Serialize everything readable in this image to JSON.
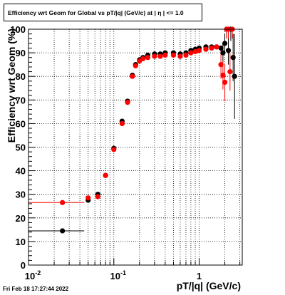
{
  "title": "Efficiency wrt Geom for Global vs pT/|q| (GeV/c) at |  η | <= 1.0",
  "timestamp": "Fri Feb 18 17:27:44 2022",
  "chart_data": {
    "type": "scatter",
    "title": "Efficiency wrt Geom for Global vs pT/|q| (GeV/c) at |  η | <= 1.0",
    "xlabel": "pT/|q| (GeV/c)",
    "ylabel": "Efficiency wrt Geom (%)",
    "xscale": "log",
    "xlim": [
      0.01,
      3.2
    ],
    "ylim": [
      0,
      100
    ],
    "grid": true,
    "x_tick_labels": [
      "10^-2",
      "10^-1",
      "1"
    ],
    "y_tick_labels": [
      "0",
      "10",
      "20",
      "30",
      "40",
      "50",
      "60",
      "70",
      "80",
      "90",
      "100"
    ],
    "series": [
      {
        "color": "#000000",
        "points": [
          {
            "x": 0.025,
            "y": 14.5,
            "xerr": [
              0.01,
              0.045
            ]
          },
          {
            "x": 0.05,
            "y": 27.5
          },
          {
            "x": 0.065,
            "y": 30.0
          },
          {
            "x": 0.08,
            "y": 38.0
          },
          {
            "x": 0.1,
            "y": 49.5
          },
          {
            "x": 0.125,
            "y": 61.0
          },
          {
            "x": 0.145,
            "y": 69.5
          },
          {
            "x": 0.165,
            "y": 80.5
          },
          {
            "x": 0.18,
            "y": 85.0
          },
          {
            "x": 0.2,
            "y": 87.0
          },
          {
            "x": 0.22,
            "y": 88.0
          },
          {
            "x": 0.25,
            "y": 89.0
          },
          {
            "x": 0.3,
            "y": 89.5
          },
          {
            "x": 0.35,
            "y": 89.5
          },
          {
            "x": 0.4,
            "y": 90.0
          },
          {
            "x": 0.5,
            "y": 90.0
          },
          {
            "x": 0.6,
            "y": 89.5
          },
          {
            "x": 0.7,
            "y": 90.0
          },
          {
            "x": 0.8,
            "y": 91.0
          },
          {
            "x": 0.9,
            "y": 91.5
          },
          {
            "x": 1.0,
            "y": 92.0
          },
          {
            "x": 1.2,
            "y": 92.5
          },
          {
            "x": 1.4,
            "y": 92.5
          },
          {
            "x": 1.6,
            "y": 92.5
          },
          {
            "x": 1.8,
            "y": 92.0
          },
          {
            "x": 1.9,
            "y": 90.0,
            "yerr": 4
          },
          {
            "x": 2.0,
            "y": 94.0,
            "yerr": 4
          },
          {
            "x": 2.1,
            "y": 100.0,
            "yerr": 4
          },
          {
            "x": 2.2,
            "y": 91.0,
            "yerr": 6
          },
          {
            "x": 2.35,
            "y": 100.0,
            "yerr": 5
          },
          {
            "x": 2.5,
            "y": 88.0,
            "yerr": 10
          },
          {
            "x": 2.6,
            "y": 80.0,
            "yerr": 18
          }
        ]
      },
      {
        "color": "#ff0000",
        "points": [
          {
            "x": 0.025,
            "y": 26.5,
            "xerr": [
              0.01,
              0.045
            ]
          },
          {
            "x": 0.05,
            "y": 28.5
          },
          {
            "x": 0.065,
            "y": 29.0
          },
          {
            "x": 0.08,
            "y": 38.0
          },
          {
            "x": 0.1,
            "y": 49.0
          },
          {
            "x": 0.125,
            "y": 60.0
          },
          {
            "x": 0.145,
            "y": 69.0
          },
          {
            "x": 0.165,
            "y": 80.0
          },
          {
            "x": 0.18,
            "y": 84.5
          },
          {
            "x": 0.2,
            "y": 86.5
          },
          {
            "x": 0.22,
            "y": 87.5
          },
          {
            "x": 0.25,
            "y": 88.0
          },
          {
            "x": 0.3,
            "y": 88.5
          },
          {
            "x": 0.35,
            "y": 88.5
          },
          {
            "x": 0.4,
            "y": 89.0
          },
          {
            "x": 0.5,
            "y": 89.0
          },
          {
            "x": 0.6,
            "y": 88.5
          },
          {
            "x": 0.7,
            "y": 89.0
          },
          {
            "x": 0.8,
            "y": 90.0
          },
          {
            "x": 0.9,
            "y": 90.5
          },
          {
            "x": 1.0,
            "y": 91.0
          },
          {
            "x": 1.2,
            "y": 91.5
          },
          {
            "x": 1.4,
            "y": 92.0
          },
          {
            "x": 1.6,
            "y": 92.5
          },
          {
            "x": 1.8,
            "y": 85.0,
            "yerr": 6
          },
          {
            "x": 1.9,
            "y": 80.5,
            "yerr": 6
          },
          {
            "x": 2.0,
            "y": 77.5,
            "yerr": 8
          },
          {
            "x": 2.1,
            "y": 100.0,
            "yerr": 4
          },
          {
            "x": 2.2,
            "y": 100.0,
            "yerr": 4
          },
          {
            "x": 2.3,
            "y": 82.0,
            "yerr": 8
          },
          {
            "x": 2.45,
            "y": 100.0,
            "yerr": 4
          }
        ]
      }
    ]
  }
}
